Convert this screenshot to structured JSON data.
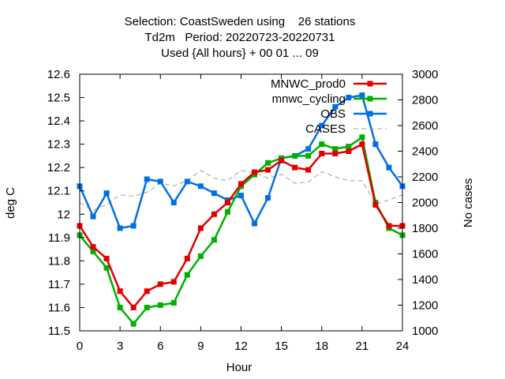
{
  "chart_data": {
    "type": "line",
    "title_lines": [
      "Selection: CoastSweden using    26 stations",
      "Td2m   Period: 20220723-20220731",
      "Used {All hours} + 00 01 ... 09"
    ],
    "xlabel": "Hour",
    "ylabel": "deg C",
    "y2label": "No cases",
    "xlim": [
      0,
      24
    ],
    "ylim": [
      11.5,
      12.6
    ],
    "y2lim": [
      1000,
      3000
    ],
    "xticks": [
      0,
      3,
      6,
      9,
      12,
      15,
      18,
      21,
      24
    ],
    "yticks": [
      11.5,
      11.6,
      11.7,
      11.8,
      11.9,
      12,
      12.1,
      12.2,
      12.3,
      12.4,
      12.5,
      12.6
    ],
    "ytick_labels": [
      "11.5",
      "11.6",
      "11.7",
      "11.8",
      "11.9",
      "12",
      "12.1",
      "12.2",
      "12.3",
      "12.4",
      "12.5",
      "12.6"
    ],
    "y2ticks": [
      1000,
      1200,
      1400,
      1600,
      1800,
      2000,
      2200,
      2400,
      2600,
      2800,
      3000
    ],
    "legend_position": "top-right",
    "series": [
      {
        "name": "MNWC_prod0",
        "color": "#e00000",
        "marker": "square",
        "axis": "y",
        "x": [
          0,
          1,
          2,
          3,
          4,
          5,
          6,
          7,
          8,
          9,
          10,
          11,
          12,
          13,
          14,
          15,
          16,
          17,
          18,
          19,
          20,
          21,
          22,
          23,
          24
        ],
        "values": [
          11.95,
          11.86,
          11.81,
          11.67,
          11.6,
          11.67,
          11.7,
          11.71,
          11.81,
          11.94,
          12.0,
          12.05,
          12.13,
          12.18,
          12.19,
          12.23,
          12.2,
          12.19,
          12.26,
          12.26,
          12.27,
          12.3,
          12.04,
          11.95,
          11.95
        ]
      },
      {
        "name": "mnwc_cycling",
        "color": "#00b000",
        "marker": "square",
        "axis": "y",
        "x": [
          0,
          1,
          2,
          3,
          4,
          5,
          6,
          7,
          8,
          9,
          10,
          11,
          12,
          13,
          14,
          15,
          16,
          17,
          18,
          19,
          20,
          21,
          22,
          23,
          24
        ],
        "values": [
          11.91,
          11.84,
          11.77,
          11.6,
          11.53,
          11.6,
          11.61,
          11.62,
          11.74,
          11.82,
          11.89,
          12.01,
          12.12,
          12.17,
          12.22,
          12.24,
          12.25,
          12.25,
          12.3,
          12.28,
          12.29,
          12.33,
          12.05,
          11.94,
          11.91
        ]
      },
      {
        "name": "OBS",
        "color": "#0070e0",
        "marker": "square",
        "axis": "y",
        "x": [
          0,
          1,
          2,
          3,
          4,
          5,
          6,
          7,
          8,
          9,
          10,
          11,
          12,
          13,
          14,
          15,
          16,
          17,
          18,
          19,
          20,
          21,
          22,
          23,
          24
        ],
        "values": [
          12.12,
          11.99,
          12.09,
          11.94,
          11.95,
          12.15,
          12.14,
          12.05,
          12.14,
          12.12,
          12.09,
          12.06,
          12.08,
          11.96,
          12.07,
          12.24,
          12.25,
          12.28,
          12.38,
          12.46,
          12.5,
          12.51,
          12.3,
          12.2,
          12.12
        ]
      },
      {
        "name": "CASES",
        "color": "#a0a0a0",
        "marker": "none",
        "dashed": true,
        "axis": "y2",
        "x": [
          0,
          1,
          2,
          3,
          4,
          5,
          6,
          7,
          8,
          9,
          10,
          11,
          12,
          13,
          14,
          15,
          16,
          17,
          18,
          19,
          20,
          21,
          22,
          23,
          24
        ],
        "values": [
          2000,
          1940,
          1985,
          2060,
          2050,
          2080,
          2150,
          2130,
          2170,
          2250,
          2190,
          2170,
          2250,
          2230,
          2190,
          2220,
          2150,
          2160,
          2240,
          2200,
          2170,
          2170,
          1990,
          2020,
          2060
        ]
      }
    ]
  }
}
